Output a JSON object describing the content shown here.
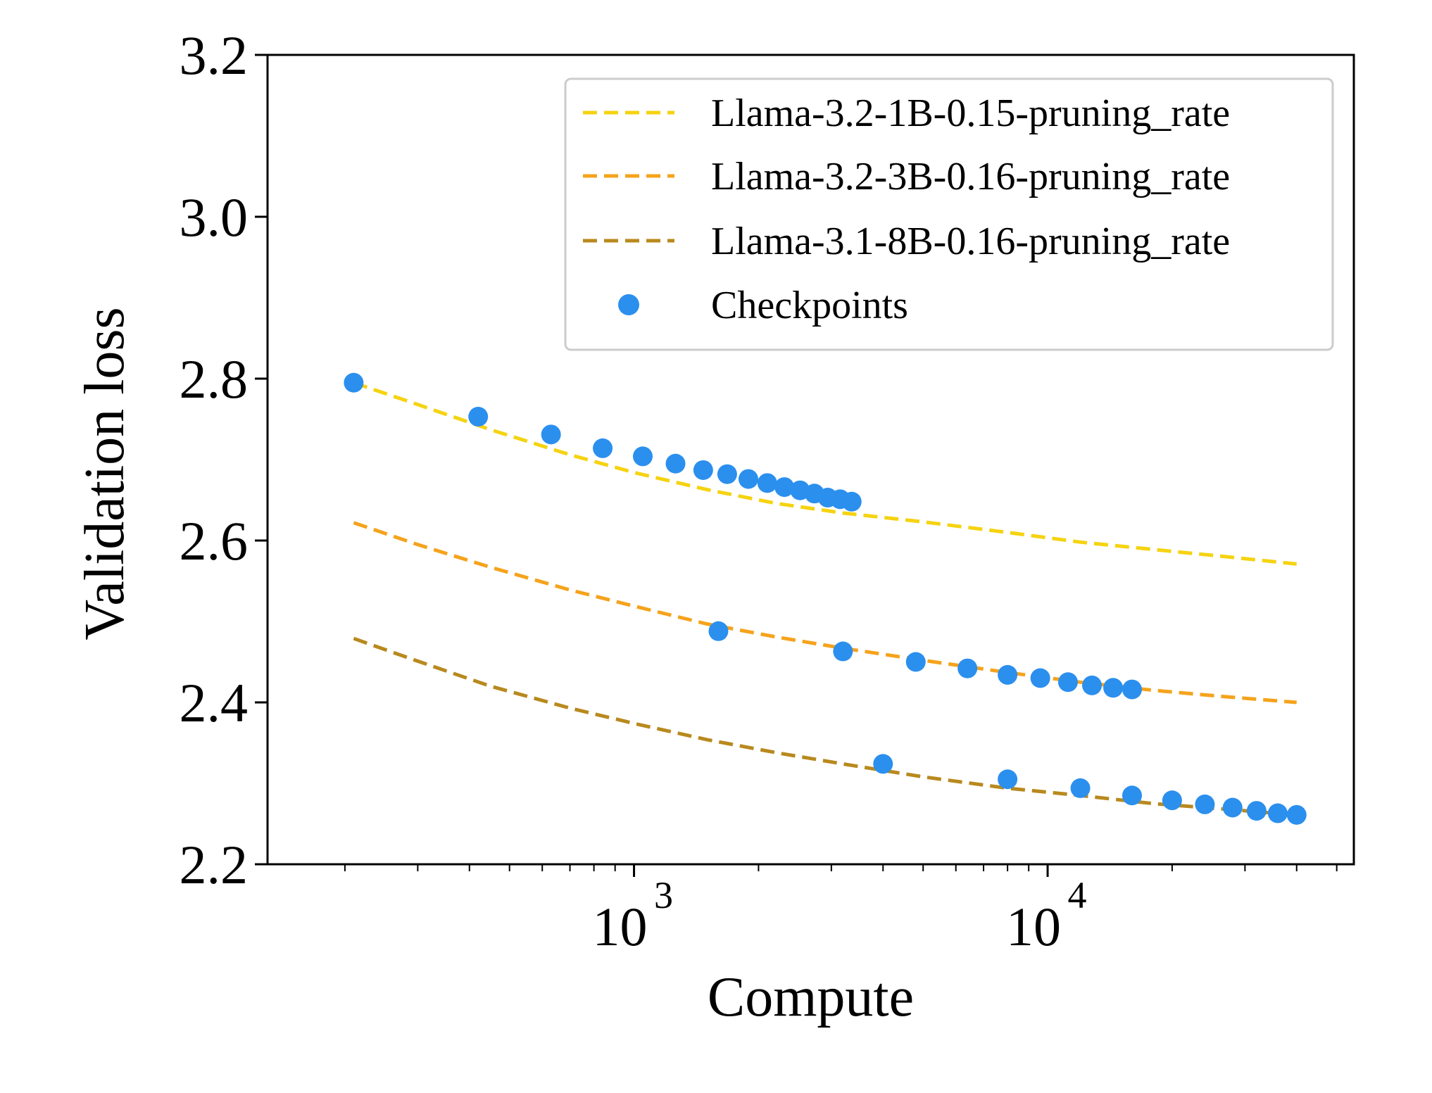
{
  "chart_data": {
    "type": "scatter",
    "xlabel": "Compute",
    "ylabel": "Validation loss",
    "xscale": "log",
    "xlim": [
      130,
      55000
    ],
    "ylim": [
      2.2,
      3.2
    ],
    "yticks": [
      2.2,
      2.4,
      2.6,
      2.8,
      3.0,
      3.2
    ],
    "ytick_labels": [
      "2.2",
      "2.4",
      "2.6",
      "2.8",
      "3.0",
      "3.2"
    ],
    "xticks": [
      1000,
      10000
    ],
    "xtick_labels": [
      {
        "base": "10",
        "exp": "3"
      },
      {
        "base": "10",
        "exp": "4"
      }
    ],
    "grid": false,
    "legend_position": "top-right",
    "series": [
      {
        "name": "Llama-3.2-1B-0.15-pruning_rate",
        "kind": "line",
        "style": "dashed",
        "color": "#F5D310",
        "x": [
          210,
          300,
          450,
          700,
          1000,
          1500,
          2200,
          3200,
          5000,
          8000,
          12000,
          18000,
          27000,
          40000
        ],
        "y": [
          2.795,
          2.768,
          2.737,
          2.706,
          2.684,
          2.663,
          2.646,
          2.634,
          2.623,
          2.61,
          2.598,
          2.589,
          2.58,
          2.571
        ]
      },
      {
        "name": "Llama-3.2-3B-0.16-pruning_rate",
        "kind": "line",
        "style": "dashed",
        "color": "#F5A31C",
        "x": [
          210,
          300,
          450,
          700,
          1000,
          1500,
          2200,
          3200,
          5000,
          8000,
          12000,
          18000,
          27000,
          40000
        ],
        "y": [
          2.622,
          2.595,
          2.567,
          2.539,
          2.519,
          2.497,
          2.481,
          2.467,
          2.452,
          2.437,
          2.425,
          2.415,
          2.407,
          2.4
        ]
      },
      {
        "name": "Llama-3.1-8B-0.16-pruning_rate",
        "kind": "line",
        "style": "dashed",
        "color": "#B8891E",
        "x": [
          210,
          300,
          450,
          700,
          1000,
          1500,
          2200,
          3200,
          5000,
          8000,
          12000,
          18000,
          27000,
          40000
        ],
        "y": [
          2.479,
          2.451,
          2.42,
          2.393,
          2.374,
          2.354,
          2.338,
          2.324,
          2.308,
          2.294,
          2.285,
          2.275,
          2.268,
          2.261
        ]
      },
      {
        "name": "Checkpoints",
        "kind": "scatter",
        "color": "#2B8FEE",
        "x": [
          210,
          420,
          630,
          840,
          1050,
          1260,
          1470,
          1680,
          1890,
          2100,
          2310,
          2520,
          2730,
          2940,
          3150,
          3360,
          1600,
          3200,
          4800,
          6400,
          8000,
          9600,
          11200,
          12800,
          14400,
          16000,
          4000,
          8000,
          12000,
          16000,
          20000,
          24000,
          28000,
          32000,
          36000,
          40000
        ],
        "y": [
          2.795,
          2.753,
          2.731,
          2.714,
          2.704,
          2.695,
          2.687,
          2.682,
          2.676,
          2.671,
          2.666,
          2.662,
          2.658,
          2.653,
          2.651,
          2.648,
          2.488,
          2.463,
          2.45,
          2.442,
          2.434,
          2.43,
          2.425,
          2.421,
          2.418,
          2.416,
          2.324,
          2.305,
          2.294,
          2.285,
          2.279,
          2.274,
          2.27,
          2.266,
          2.263,
          2.261
        ]
      }
    ]
  }
}
